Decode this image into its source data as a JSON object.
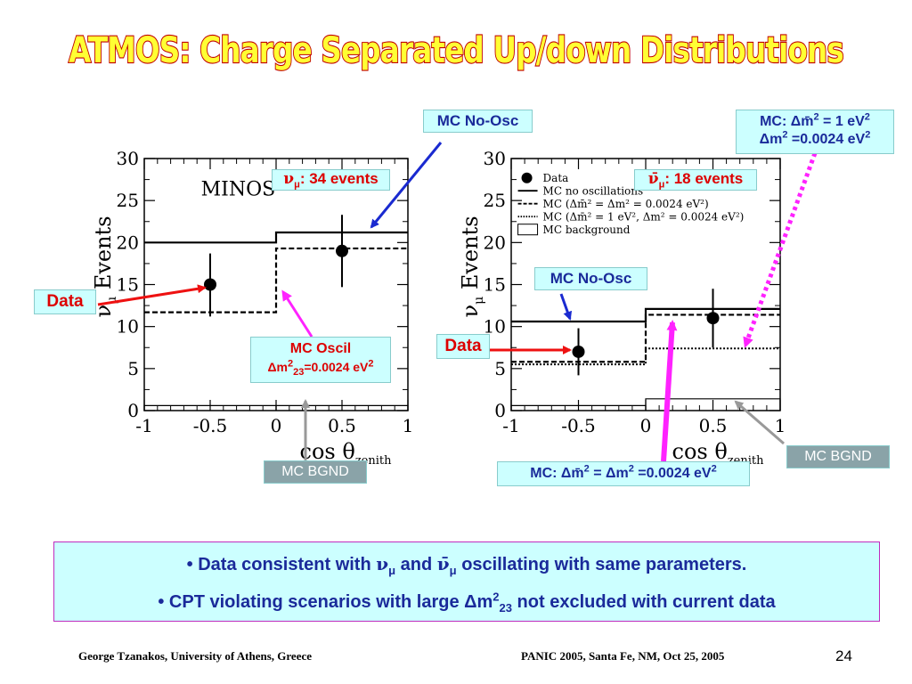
{
  "title": "ATMOS: Charge Separated Up/down Distributions",
  "chart_data": [
    {
      "type": "step",
      "name": "nu_mu",
      "ylabel_main": "ν",
      "ylabel_sub": "μ",
      "ylabel_tail": " Events",
      "xlabel_main": "cos θ",
      "xlabel_sub": "zenith",
      "xlim": [
        -1,
        1
      ],
      "ylim": [
        0,
        30
      ],
      "xticks": [
        -1,
        -0.5,
        0,
        0.5,
        1
      ],
      "xtick_labels": [
        "-1",
        "-0.5",
        "0",
        "0.5",
        "1"
      ],
      "yticks": [
        0,
        5,
        10,
        15,
        20,
        25,
        30
      ],
      "ytick_labels": [
        "0",
        "5",
        "10",
        "15",
        "20",
        "25",
        "30"
      ],
      "inset_label": "MINOS",
      "bins": [
        [
          -1,
          0
        ],
        [
          0,
          1
        ]
      ],
      "data_points": [
        {
          "x": -0.5,
          "y": 15,
          "err_low": 11.2,
          "err_high": 18.7
        },
        {
          "x": 0.5,
          "y": 19,
          "err_low": 14.7,
          "err_high": 23.3
        }
      ],
      "mc_no_osc": [
        20,
        21.2
      ],
      "mc_oscil": [
        11.7,
        19.3
      ],
      "mc_bgnd": [
        0.6,
        0.6
      ]
    },
    {
      "type": "step",
      "name": "nubar_mu",
      "ylabel_main": "ν",
      "ylabel_sub": "μ",
      "ylabel_tail": " Events",
      "xlabel_main": "cos θ",
      "xlabel_sub": "zenith",
      "xlim": [
        -1,
        1
      ],
      "ylim": [
        0,
        30
      ],
      "xticks": [
        -1,
        -0.5,
        0,
        0.5,
        1
      ],
      "xtick_labels": [
        "-1",
        "-0.5",
        "0",
        "0.5",
        "1"
      ],
      "yticks": [
        0,
        5,
        10,
        15,
        20,
        25,
        30
      ],
      "ytick_labels": [
        "0",
        "5",
        "10",
        "15",
        "20",
        "25",
        "30"
      ],
      "legend": [
        {
          "style": "marker",
          "text": "Data"
        },
        {
          "style": "solid",
          "text": "MC no oscillations"
        },
        {
          "style": "dashed",
          "text": "MC (Δm̄² = Δm² = 0.0024 eV²)"
        },
        {
          "style": "dotted",
          "text": "MC (Δm̄² = 1 eV², Δm² = 0.0024 eV²)"
        },
        {
          "style": "box",
          "text": "MC background"
        }
      ],
      "bins": [
        [
          -1,
          0
        ],
        [
          0,
          1
        ]
      ],
      "data_points": [
        {
          "x": -0.5,
          "y": 7,
          "err_low": 4.2,
          "err_high": 9.8
        },
        {
          "x": 0.5,
          "y": 11,
          "err_low": 7.5,
          "err_high": 14.5
        }
      ],
      "mc_no_osc": [
        10.6,
        12.1
      ],
      "mc_oscil_equal": [
        5.8,
        11.4
      ],
      "mc_oscil_large": [
        5.5,
        7.4
      ],
      "mc_bgnd": [
        0.6,
        1.4
      ]
    }
  ],
  "callouts": {
    "left_events_sym": "ν",
    "left_events_sub": "μ",
    "left_events_text": ": 34 events",
    "right_events_sym": "ν̄",
    "right_events_sub": "μ",
    "right_events_text": ": 18 events",
    "mc_no_osc_top": "MC No-Osc",
    "mc_no_osc_right": "MC No-Osc",
    "data_left": "Data",
    "data_right": "Data",
    "mc_oscil_line1": "MC Oscil",
    "mc_oscil_line2_a": "Δm",
    "mc_oscil_line2_sup": "2",
    "mc_oscil_line2_sub": "23",
    "mc_oscil_line2_b": "=0.0024 eV",
    "mc_oscil_line2_sup2": "2",
    "mc_bgnd_left": "MC BGND",
    "mc_bgnd_right": "MC BGND",
    "mc_large_line1_a": "MC:  Δm̄",
    "mc_large_line1_sup": "2",
    "mc_large_line1_b": " = 1 eV",
    "mc_large_line1_sup2": "2",
    "mc_large_line2_a": "Δm",
    "mc_large_line2_sup": "2",
    "mc_large_line2_b": " =0.0024 eV",
    "mc_large_line2_sup2": "2",
    "mc_equal_a": "MC: Δm̄",
    "mc_equal_sup": "2",
    "mc_equal_b": " = Δm",
    "mc_equal_sup2": "2",
    "mc_equal_c": " =0.0024 eV",
    "mc_equal_sup3": "2"
  },
  "bullets": {
    "b1_a": "• Data consistent with ",
    "b1_nu": "ν",
    "b1_sub": "μ",
    "b1_and": " and ",
    "b1_nubar": "ν̄",
    "b1_sub2": "μ",
    "b1_b": " oscillating with same parameters.",
    "b2_a": "• CPT violating scenarios with large Δm",
    "b2_sup": "2",
    "b2_sub": "23",
    "b2_b": " not excluded with current data"
  },
  "footer": {
    "left": "George Tzanakos, University of Athens, Greece",
    "center": "PANIC 2005, Santa Fe, NM, Oct 25, 2005",
    "page": "24"
  },
  "colors": {
    "title_fill": "#ffff33",
    "title_stroke": "#c00000",
    "label_bg": "#ccffff",
    "label_blue": "#1a2a9a",
    "label_red": "#dd0000",
    "arrow_blue": "#1a2ad0",
    "arrow_red": "#ee1111",
    "arrow_magenta": "#ff22ff",
    "arrow_gray": "#999999"
  }
}
